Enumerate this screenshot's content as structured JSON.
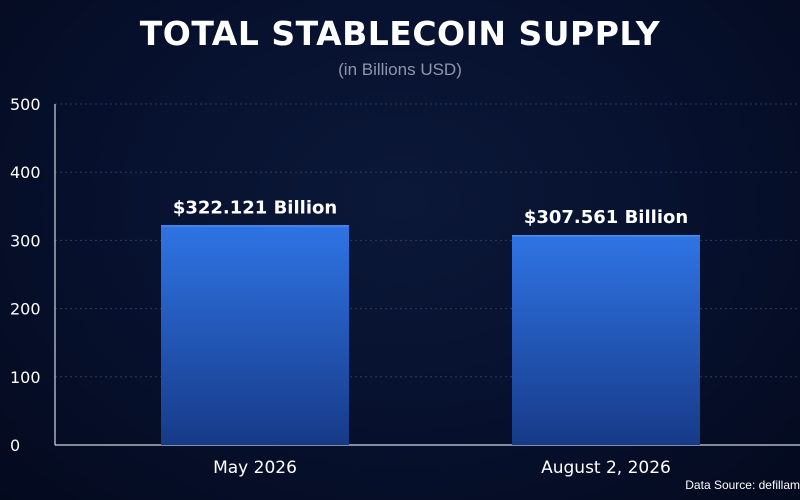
{
  "chart_data": {
    "type": "bar",
    "title": "TOTAL STABLECOIN SUPPLY",
    "subtitle": "(in Billions USD)",
    "categories": [
      "May 2026",
      "August 2, 2026"
    ],
    "values": [
      322.121,
      307.561
    ],
    "data_labels": [
      "$322.121 Billion",
      "$307.561 Billion"
    ],
    "ylim": [
      0,
      500
    ],
    "yticks": [
      0,
      100,
      200,
      300,
      400,
      500
    ],
    "grid": "horizontal dotted",
    "legend": "none",
    "bar_color": "#2f74e4",
    "bar_color_bottom": "#173a88"
  },
  "source_note": "Data Source: defillam"
}
